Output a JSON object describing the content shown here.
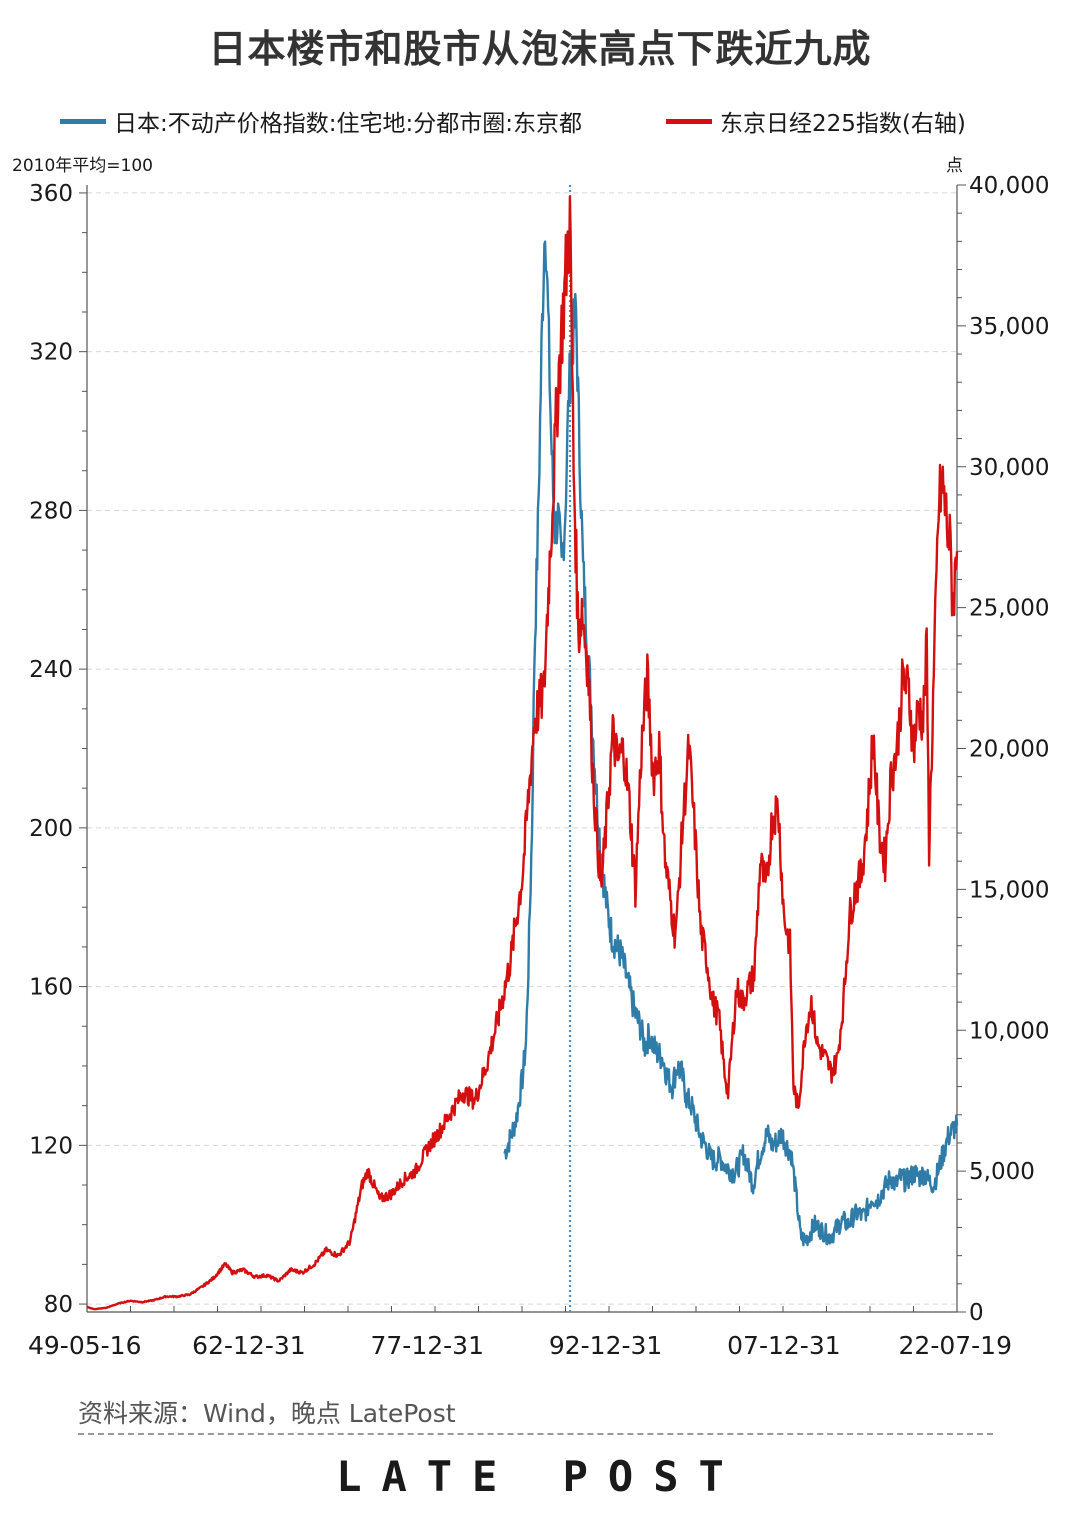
{
  "title": "日本楼市和股市从泡沫高点下跌近九成",
  "legend": [
    {
      "label": "日本:不动产价格指数:住宅地:分都市圈:东京都",
      "color": "#2f7ca8"
    },
    {
      "label": "东京日经225指数(右轴)",
      "color": "#d40f0f"
    }
  ],
  "left_unit": "2010年平均=100",
  "right_unit": "点",
  "source": "资料来源：Wind，晚点 LatePost",
  "brand": "LATE POST",
  "chart_data": {
    "type": "line",
    "x_tick_labels": [
      "49-05-16",
      "62-12-31",
      "77-12-31",
      "92-12-31",
      "07-12-31",
      "22-07-19"
    ],
    "x_tick_years": [
      1949.37,
      1962.99,
      1977.99,
      1992.99,
      2007.99,
      2022.55
    ],
    "x_range": [
      1949.37,
      2022.55
    ],
    "y_left": {
      "range": [
        78,
        362
      ],
      "ticks": [
        80,
        120,
        160,
        200,
        240,
        280,
        320,
        360
      ]
    },
    "y_right": {
      "range": [
        0,
        40000
      ],
      "ticks": [
        0,
        5000,
        10000,
        15000,
        20000,
        25000,
        30000,
        35000,
        40000
      ],
      "tick_labels": [
        "0",
        "5,000",
        "10,000",
        "15,000",
        "20,000",
        "25,000",
        "30,000",
        "35,000",
        "40,000"
      ]
    },
    "reference_line": {
      "year": 1990.0,
      "style": "dotted",
      "color": "#4a90c8"
    },
    "grid": true,
    "legend_position": "top",
    "series": [
      {
        "name": "日本:不动产价格指数:住宅地:分都市圈:东京都",
        "axis": "left",
        "color": "#2f7ca8",
        "points": [
          [
            1984.5,
            118
          ],
          [
            1985.0,
            122
          ],
          [
            1985.5,
            127
          ],
          [
            1986.0,
            137
          ],
          [
            1986.3,
            146
          ],
          [
            1986.5,
            165
          ],
          [
            1986.8,
            200
          ],
          [
            1987.0,
            243
          ],
          [
            1987.3,
            275
          ],
          [
            1987.6,
            320
          ],
          [
            1987.9,
            355
          ],
          [
            1988.1,
            335
          ],
          [
            1988.4,
            300
          ],
          [
            1988.7,
            275
          ],
          [
            1989.0,
            278
          ],
          [
            1989.3,
            265
          ],
          [
            1989.6,
            280
          ],
          [
            1989.9,
            310
          ],
          [
            1990.2,
            322
          ],
          [
            1990.5,
            330
          ],
          [
            1990.8,
            295
          ],
          [
            1991.1,
            265
          ],
          [
            1991.5,
            245
          ],
          [
            1991.9,
            225
          ],
          [
            1992.3,
            205
          ],
          [
            1992.7,
            190
          ],
          [
            1993.1,
            180
          ],
          [
            1993.5,
            173
          ],
          [
            1993.9,
            170
          ],
          [
            1994.3,
            168
          ],
          [
            1994.7,
            163
          ],
          [
            1995.1,
            158
          ],
          [
            1995.5,
            153
          ],
          [
            1995.9,
            150
          ],
          [
            1996.3,
            145
          ],
          [
            1996.7,
            148
          ],
          [
            1997.0,
            145
          ],
          [
            1997.4,
            143
          ],
          [
            1997.8,
            142
          ],
          [
            1998.2,
            137
          ],
          [
            1998.6,
            135
          ],
          [
            1999.0,
            140
          ],
          [
            1999.4,
            138
          ],
          [
            1999.8,
            132
          ],
          [
            2000.2,
            130
          ],
          [
            2000.6,
            126
          ],
          [
            2001.0,
            122
          ],
          [
            2001.4,
            120
          ],
          [
            2001.8,
            117
          ],
          [
            2002.2,
            116
          ],
          [
            2002.6,
            117
          ],
          [
            2003.0,
            115
          ],
          [
            2003.4,
            114
          ],
          [
            2003.8,
            113
          ],
          [
            2004.2,
            115
          ],
          [
            2004.6,
            118
          ],
          [
            2005.0,
            114
          ],
          [
            2005.4,
            110
          ],
          [
            2005.8,
            116
          ],
          [
            2006.2,
            120
          ],
          [
            2006.6,
            123
          ],
          [
            2007.0,
            120
          ],
          [
            2007.4,
            121
          ],
          [
            2007.8,
            123
          ],
          [
            2008.2,
            120
          ],
          [
            2008.6,
            118
          ],
          [
            2009.0,
            108
          ],
          [
            2009.4,
            97
          ],
          [
            2009.8,
            96
          ],
          [
            2010.2,
            98
          ],
          [
            2010.6,
            100
          ],
          [
            2011.0,
            99
          ],
          [
            2011.4,
            98
          ],
          [
            2011.8,
            97
          ],
          [
            2012.2,
            98
          ],
          [
            2012.6,
            100
          ],
          [
            2013.0,
            101
          ],
          [
            2013.4,
            100
          ],
          [
            2013.8,
            102
          ],
          [
            2014.2,
            103
          ],
          [
            2014.6,
            102
          ],
          [
            2015.0,
            104
          ],
          [
            2015.4,
            107
          ],
          [
            2015.8,
            106
          ],
          [
            2016.2,
            108
          ],
          [
            2016.6,
            110
          ],
          [
            2017.0,
            112
          ],
          [
            2017.4,
            110
          ],
          [
            2017.8,
            112
          ],
          [
            2018.2,
            111
          ],
          [
            2018.6,
            112
          ],
          [
            2019.0,
            113
          ],
          [
            2019.4,
            112
          ],
          [
            2019.8,
            113
          ],
          [
            2020.2,
            111
          ],
          [
            2020.6,
            110
          ],
          [
            2021.0,
            114
          ],
          [
            2021.4,
            118
          ],
          [
            2021.8,
            122
          ],
          [
            2022.2,
            124
          ],
          [
            2022.55,
            125
          ]
        ]
      },
      {
        "name": "东京日经225指数(右轴)",
        "axis": "right",
        "color": "#d40f0f",
        "points": [
          [
            1949.37,
            176
          ],
          [
            1950.0,
            100
          ],
          [
            1951.0,
            150
          ],
          [
            1952.0,
            300
          ],
          [
            1953.0,
            400
          ],
          [
            1954.0,
            350
          ],
          [
            1955.0,
            420
          ],
          [
            1956.0,
            550
          ],
          [
            1957.0,
            550
          ],
          [
            1958.0,
            620
          ],
          [
            1959.0,
            880
          ],
          [
            1960.0,
            1200
          ],
          [
            1961.0,
            1700
          ],
          [
            1961.6,
            1400
          ],
          [
            1962.5,
            1500
          ],
          [
            1963.5,
            1250
          ],
          [
            1964.5,
            1300
          ],
          [
            1965.5,
            1100
          ],
          [
            1966.5,
            1500
          ],
          [
            1967.5,
            1400
          ],
          [
            1968.5,
            1700
          ],
          [
            1969.5,
            2200
          ],
          [
            1970.5,
            2000
          ],
          [
            1971.5,
            2500
          ],
          [
            1972.5,
            4500
          ],
          [
            1973.0,
            5000
          ],
          [
            1974.0,
            4000
          ],
          [
            1975.0,
            4200
          ],
          [
            1976.0,
            4700
          ],
          [
            1977.0,
            5000
          ],
          [
            1978.0,
            5800
          ],
          [
            1979.0,
            6400
          ],
          [
            1980.0,
            7100
          ],
          [
            1981.0,
            7800
          ],
          [
            1982.0,
            7500
          ],
          [
            1983.0,
            8800
          ],
          [
            1984.0,
            10500
          ],
          [
            1985.0,
            12500
          ],
          [
            1986.0,
            15500
          ],
          [
            1987.0,
            21000
          ],
          [
            1987.8,
            22000
          ],
          [
            1988.0,
            24000
          ],
          [
            1989.0,
            33000
          ],
          [
            1989.99,
            38915
          ],
          [
            1990.3,
            30000
          ],
          [
            1990.7,
            24000
          ],
          [
            1991.0,
            25000
          ],
          [
            1991.5,
            23000
          ],
          [
            1992.0,
            18500
          ],
          [
            1992.6,
            15000
          ],
          [
            1993.0,
            17000
          ],
          [
            1993.6,
            20500
          ],
          [
            1994.0,
            19500
          ],
          [
            1994.5,
            20000
          ],
          [
            1995.0,
            18000
          ],
          [
            1995.5,
            15000
          ],
          [
            1996.0,
            20000
          ],
          [
            1996.5,
            22500
          ],
          [
            1997.0,
            19000
          ],
          [
            1997.5,
            20000
          ],
          [
            1998.0,
            16000
          ],
          [
            1998.8,
            13500
          ],
          [
            1999.0,
            14000
          ],
          [
            1999.5,
            17500
          ],
          [
            2000.0,
            20000
          ],
          [
            2000.5,
            17000
          ],
          [
            2001.0,
            13500
          ],
          [
            2001.5,
            12500
          ],
          [
            2002.0,
            11000
          ],
          [
            2002.5,
            10500
          ],
          [
            2003.0,
            8500
          ],
          [
            2003.3,
            7800
          ],
          [
            2004.0,
            11500
          ],
          [
            2004.5,
            11000
          ],
          [
            2005.0,
            11500
          ],
          [
            2005.5,
            12000
          ],
          [
            2006.0,
            16000
          ],
          [
            2006.5,
            15000
          ],
          [
            2007.0,
            17500
          ],
          [
            2007.5,
            18000
          ],
          [
            2008.0,
            14000
          ],
          [
            2008.5,
            13000
          ],
          [
            2008.8,
            8000
          ],
          [
            2009.2,
            7200
          ],
          [
            2009.8,
            10000
          ],
          [
            2010.3,
            11000
          ],
          [
            2010.8,
            9500
          ],
          [
            2011.5,
            9000
          ],
          [
            2012.0,
            8500
          ],
          [
            2012.5,
            9000
          ],
          [
            2013.0,
            11000
          ],
          [
            2013.5,
            14000
          ],
          [
            2014.0,
            15000
          ],
          [
            2014.5,
            15500
          ],
          [
            2015.0,
            17500
          ],
          [
            2015.5,
            20500
          ],
          [
            2016.0,
            17000
          ],
          [
            2016.5,
            16000
          ],
          [
            2017.0,
            19000
          ],
          [
            2017.5,
            20000
          ],
          [
            2018.0,
            22500
          ],
          [
            2018.5,
            22000
          ],
          [
            2018.9,
            20000
          ],
          [
            2019.3,
            21500
          ],
          [
            2019.7,
            21000
          ],
          [
            2020.0,
            23500
          ],
          [
            2020.2,
            16500
          ],
          [
            2020.6,
            22500
          ],
          [
            2021.0,
            28500
          ],
          [
            2021.3,
            29500
          ],
          [
            2021.7,
            28000
          ],
          [
            2022.0,
            27000
          ],
          [
            2022.2,
            25000
          ],
          [
            2022.55,
            27000
          ]
        ]
      }
    ]
  }
}
